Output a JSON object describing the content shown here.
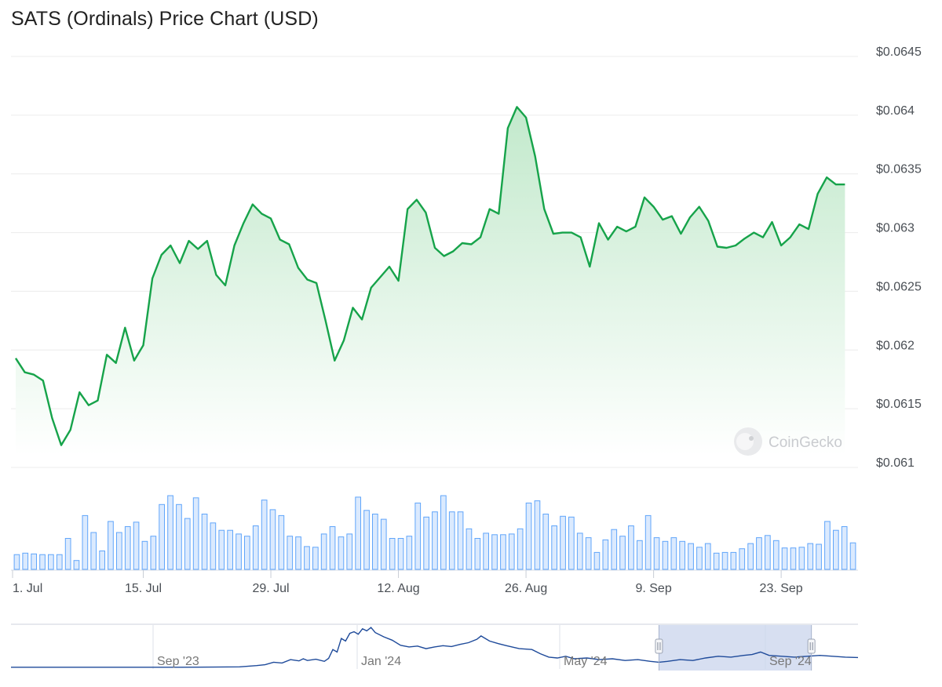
{
  "title": "SATS (Ordinals) Price Chart (USD)",
  "watermark": "CoinGecko",
  "colors": {
    "line": "#16a34a",
    "area_top": "#bfe8c9",
    "volume_fill": "#dbeafe",
    "volume_stroke": "#60a5fa",
    "navigator_line": "#1e4a9a",
    "navigator_mask": "#c9d4ec",
    "grid": "#ececec"
  },
  "chart_data": {
    "type": "line",
    "title": "SATS (Ordinals) Price Chart (USD)",
    "ylim": [
      0.061,
      0.0645
    ],
    "y_ticks": [
      {
        "value": 0.0645,
        "label": "$0.0645"
      },
      {
        "value": 0.064,
        "label": "$0.064"
      },
      {
        "value": 0.0635,
        "label": "$0.0635"
      },
      {
        "value": 0.063,
        "label": "$0.063"
      },
      {
        "value": 0.0625,
        "label": "$0.0625"
      },
      {
        "value": 0.062,
        "label": "$0.062"
      },
      {
        "value": 0.0615,
        "label": "$0.0615"
      },
      {
        "value": 0.061,
        "label": "$0.061"
      }
    ],
    "x_range": [
      0,
      92
    ],
    "x_ticks": [
      {
        "day": 0,
        "label": "1. Jul"
      },
      {
        "day": 14,
        "label": "15. Jul"
      },
      {
        "day": 28,
        "label": "29. Jul"
      },
      {
        "day": 42,
        "label": "12. Aug"
      },
      {
        "day": 56,
        "label": "26. Aug"
      },
      {
        "day": 70,
        "label": "9. Sep"
      },
      {
        "day": 84,
        "label": "23. Sep"
      }
    ],
    "price": [
      [
        0.0,
        0.06193
      ],
      [
        1.0,
        0.06181
      ],
      [
        2.0,
        0.06179
      ],
      [
        3.0,
        0.06174
      ],
      [
        4.0,
        0.06142
      ],
      [
        5.0,
        0.06119
      ],
      [
        6.0,
        0.06132
      ],
      [
        7.0,
        0.06164
      ],
      [
        8.0,
        0.06153
      ],
      [
        9.0,
        0.06157
      ],
      [
        10.0,
        0.06196
      ],
      [
        11.0,
        0.06189
      ],
      [
        12.0,
        0.06219
      ],
      [
        13.0,
        0.06191
      ],
      [
        14.0,
        0.06204
      ],
      [
        15.0,
        0.06261
      ],
      [
        16.0,
        0.06281
      ],
      [
        17.0,
        0.06289
      ],
      [
        18.0,
        0.06274
      ],
      [
        19.0,
        0.06293
      ],
      [
        20.0,
        0.06286
      ],
      [
        21.0,
        0.06293
      ],
      [
        22.0,
        0.06264
      ],
      [
        23.0,
        0.06255
      ],
      [
        24.0,
        0.06289
      ],
      [
        25.0,
        0.06308
      ],
      [
        26.0,
        0.06324
      ],
      [
        27.0,
        0.06316
      ],
      [
        28.0,
        0.06312
      ],
      [
        29.0,
        0.06294
      ],
      [
        30.0,
        0.0629
      ],
      [
        31.0,
        0.0627
      ],
      [
        32.0,
        0.0626
      ],
      [
        33.0,
        0.06257
      ],
      [
        34.0,
        0.06225
      ],
      [
        35.0,
        0.06191
      ],
      [
        36.0,
        0.06208
      ],
      [
        37.0,
        0.06236
      ],
      [
        38.0,
        0.06226
      ],
      [
        39.0,
        0.06253
      ],
      [
        40.0,
        0.06262
      ],
      [
        41.0,
        0.06271
      ],
      [
        42.0,
        0.06259
      ],
      [
        43.0,
        0.0632
      ],
      [
        44.0,
        0.06328
      ],
      [
        45.0,
        0.06317
      ],
      [
        46.0,
        0.06287
      ],
      [
        47.0,
        0.0628
      ],
      [
        48.0,
        0.06284
      ],
      [
        49.0,
        0.06291
      ],
      [
        50.0,
        0.0629
      ],
      [
        51.0,
        0.06296
      ],
      [
        52.0,
        0.0632
      ],
      [
        53.0,
        0.06316
      ],
      [
        54.0,
        0.06389
      ],
      [
        55.0,
        0.06407
      ],
      [
        56.0,
        0.06398
      ],
      [
        57.0,
        0.06365
      ],
      [
        58.0,
        0.0632
      ],
      [
        59.0,
        0.06299
      ],
      [
        60.0,
        0.063
      ],
      [
        61.0,
        0.063
      ],
      [
        62.0,
        0.06296
      ],
      [
        63.0,
        0.06271
      ],
      [
        64.0,
        0.06308
      ],
      [
        65.0,
        0.06294
      ],
      [
        66.0,
        0.06305
      ],
      [
        67.0,
        0.06301
      ],
      [
        68.0,
        0.06305
      ],
      [
        69.0,
        0.0633
      ],
      [
        70.0,
        0.06322
      ],
      [
        71.0,
        0.06311
      ],
      [
        72.0,
        0.06314
      ],
      [
        73.0,
        0.06299
      ],
      [
        74.0,
        0.06313
      ],
      [
        75.0,
        0.06322
      ],
      [
        76.0,
        0.0631
      ],
      [
        77.0,
        0.06288
      ],
      [
        78.0,
        0.06287
      ],
      [
        79.0,
        0.06289
      ],
      [
        80.0,
        0.06295
      ],
      [
        81.0,
        0.063
      ],
      [
        82.0,
        0.06296
      ],
      [
        83.0,
        0.06309
      ],
      [
        84.0,
        0.06289
      ],
      [
        85.0,
        0.06296
      ],
      [
        86.0,
        0.06307
      ],
      [
        87.0,
        0.06303
      ],
      [
        88.0,
        0.06333
      ],
      [
        89.0,
        0.06347
      ],
      [
        90.0,
        0.06341
      ],
      [
        91.0,
        0.06341
      ]
    ],
    "volume": [
      0.2,
      0.22,
      0.21,
      0.2,
      0.2,
      0.2,
      0.42,
      0.12,
      0.73,
      0.5,
      0.25,
      0.65,
      0.5,
      0.58,
      0.64,
      0.38,
      0.45,
      0.88,
      1.0,
      0.88,
      0.69,
      0.97,
      0.75,
      0.63,
      0.53,
      0.53,
      0.48,
      0.45,
      0.59,
      0.94,
      0.81,
      0.73,
      0.45,
      0.44,
      0.31,
      0.3,
      0.48,
      0.58,
      0.44,
      0.48,
      0.98,
      0.8,
      0.75,
      0.68,
      0.42,
      0.42,
      0.45,
      0.9,
      0.71,
      0.78,
      1.0,
      0.78,
      0.78,
      0.55,
      0.42,
      0.49,
      0.47,
      0.47,
      0.48,
      0.55,
      0.9,
      0.93,
      0.75,
      0.59,
      0.72,
      0.71,
      0.49,
      0.43,
      0.23,
      0.4,
      0.54,
      0.45,
      0.59,
      0.39,
      0.73,
      0.43,
      0.38,
      0.43,
      0.38,
      0.35,
      0.3,
      0.35,
      0.22,
      0.23,
      0.23,
      0.28,
      0.35,
      0.43,
      0.46,
      0.39,
      0.29,
      0.29,
      0.3,
      0.35,
      0.34,
      0.65,
      0.53,
      0.58,
      0.36
    ],
    "navigator": {
      "x_ticks": [
        {
          "label": "Sep '23"
        },
        {
          "label": "Jan '24"
        },
        {
          "label": "May '24"
        },
        {
          "label": "Sep '24"
        }
      ],
      "selection": [
        0.765,
        0.945
      ]
    }
  }
}
